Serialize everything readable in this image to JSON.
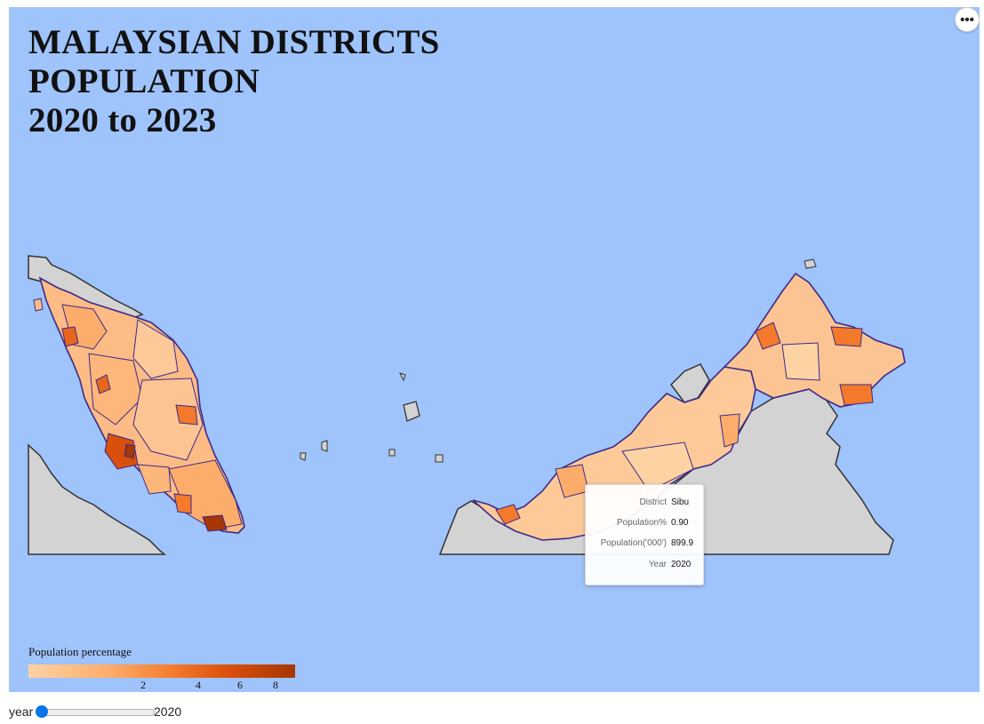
{
  "title": {
    "line1": "MALAYSIAN DISTRICTS",
    "line2": "POPULATION",
    "line3": "2020 to 2023"
  },
  "menu_icon": "more-horizontal-icon",
  "colors": {
    "ocean": "#9fc3fb",
    "no_data_land": "#d3d3d3",
    "district_border": "#3b2a8a",
    "scale_low": "#fdd3a4",
    "scale_high": "#a63603"
  },
  "tooltip": {
    "rows": [
      {
        "label": "District",
        "value": "Sibu"
      },
      {
        "label": "Population%",
        "value": "0.90"
      },
      {
        "label": "Population('000')",
        "value": "899.9"
      },
      {
        "label": "Year",
        "value": "2020"
      }
    ]
  },
  "legend": {
    "title": "Population percentage",
    "ticks": [
      "2",
      "4",
      "6",
      "8"
    ]
  },
  "slider": {
    "label": "year",
    "value": "2020"
  }
}
